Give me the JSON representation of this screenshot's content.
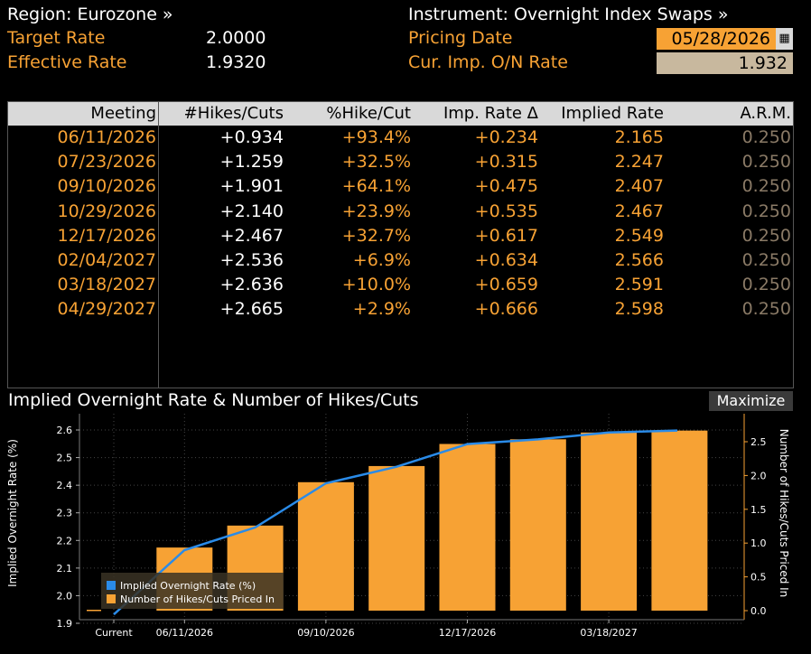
{
  "header": {
    "region_label": "Region: Eurozone »",
    "instrument_label": "Instrument: Overnight Index Swaps »",
    "target_rate_label": "Target Rate",
    "target_rate_value": "2.0000",
    "effective_rate_label": "Effective Rate",
    "effective_rate_value": "1.9320",
    "pricing_date_label": "Pricing Date",
    "pricing_date_value": "05/28/2026",
    "onrate_label": "Cur. Imp. O/N Rate",
    "onrate_value": "1.932"
  },
  "table": {
    "columns": [
      "Meeting",
      "#Hikes/Cuts",
      "%Hike/Cut",
      "Imp. Rate Δ",
      "Implied Rate",
      "A.R.M."
    ],
    "rows": [
      {
        "meeting": "06/11/2026",
        "hikes": "+0.934",
        "pct": "+93.4%",
        "delta": "+0.234",
        "implied": "2.165",
        "arm": "0.250"
      },
      {
        "meeting": "07/23/2026",
        "hikes": "+1.259",
        "pct": "+32.5%",
        "delta": "+0.315",
        "implied": "2.247",
        "arm": "0.250"
      },
      {
        "meeting": "09/10/2026",
        "hikes": "+1.901",
        "pct": "+64.1%",
        "delta": "+0.475",
        "implied": "2.407",
        "arm": "0.250"
      },
      {
        "meeting": "10/29/2026",
        "hikes": "+2.140",
        "pct": "+23.9%",
        "delta": "+0.535",
        "implied": "2.467",
        "arm": "0.250"
      },
      {
        "meeting": "12/17/2026",
        "hikes": "+2.467",
        "pct": "+32.7%",
        "delta": "+0.617",
        "implied": "2.549",
        "arm": "0.250"
      },
      {
        "meeting": "02/04/2027",
        "hikes": "+2.536",
        "pct": "+6.9%",
        "delta": "+0.634",
        "implied": "2.566",
        "arm": "0.250"
      },
      {
        "meeting": "03/18/2027",
        "hikes": "+2.636",
        "pct": "+10.0%",
        "delta": "+0.659",
        "implied": "2.591",
        "arm": "0.250"
      },
      {
        "meeting": "04/29/2027",
        "hikes": "+2.665",
        "pct": "+2.9%",
        "delta": "+0.666",
        "implied": "2.598",
        "arm": "0.250"
      }
    ]
  },
  "chart_header": {
    "title": "Implied Overnight Rate & Number of Hikes/Cuts",
    "maximize_label": "Maximize"
  },
  "chart_data": {
    "type": "bar",
    "title": "Implied Overnight Rate & Number of Hikes/Cuts",
    "categories": [
      "Current",
      "06/11/2026",
      "07/23/2026",
      "09/10/2026",
      "10/29/2026",
      "12/17/2026",
      "02/04/2027",
      "03/18/2027",
      "04/29/2027"
    ],
    "x_tick_labels": [
      "Current",
      "06/11/2026",
      "09/10/2026",
      "12/17/2026",
      "03/18/2027"
    ],
    "x_tick_categories": [
      0,
      1,
      3,
      5,
      7
    ],
    "series": [
      {
        "name": "Number of Hikes/Cuts Priced In",
        "type": "bar",
        "axis": "right",
        "color": "#f7a234",
        "values": [
          0,
          0.934,
          1.259,
          1.901,
          2.14,
          2.467,
          2.536,
          2.636,
          2.665
        ]
      },
      {
        "name": "Implied Overnight Rate (%)",
        "type": "line",
        "axis": "left",
        "color": "#2a8be8",
        "values": [
          1.932,
          2.165,
          2.247,
          2.407,
          2.467,
          2.549,
          2.566,
          2.591,
          2.598
        ]
      }
    ],
    "ylabel_left": "Implied Overnight Rate (%)",
    "ylabel_right": "Number of Hikes/Cuts Priced In",
    "yticks_left": [
      "1.9",
      "2.0",
      "2.1",
      "2.2",
      "2.3",
      "2.4",
      "2.5",
      "2.6"
    ],
    "yticks_right": [
      "0.0",
      "0.5",
      "1.0",
      "1.5",
      "2.0",
      "2.5"
    ],
    "ylim_left": [
      1.9,
      2.6
    ],
    "ylim_right": [
      0,
      2.5
    ],
    "grid": true,
    "legend_placement": "bottom-left"
  },
  "colors": {
    "orange": "#f7a234",
    "blue": "#2a8be8",
    "header_bg": "#d9d9d9"
  }
}
